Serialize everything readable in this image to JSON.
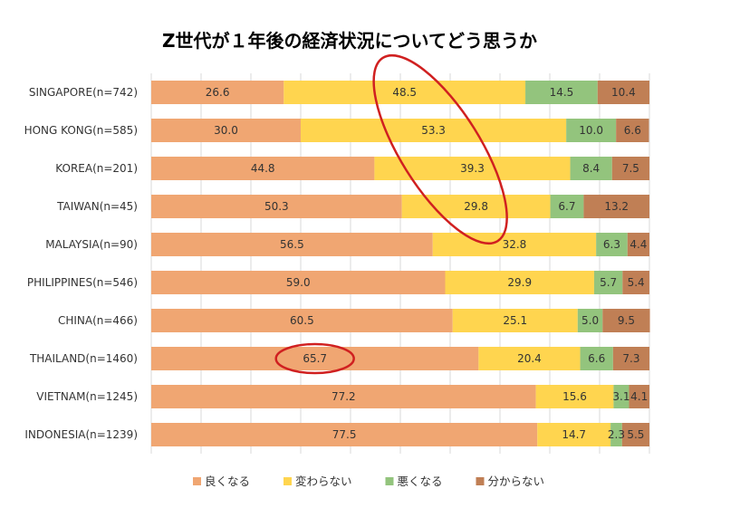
{
  "chart_data": {
    "type": "bar",
    "orientation": "horizontal",
    "stacked": true,
    "title": "Z世代が１年後の経済状況についてどう思うか",
    "xlabel": "",
    "ylabel": "",
    "xlim": [
      0,
      100
    ],
    "grid": true,
    "legend_position": "bottom",
    "categories": [
      "SINGAPORE(n=742)",
      "HONG KONG(n=585)",
      "KOREA(n=201)",
      "TAIWAN(n=45)",
      "MALAYSIA(n=90)",
      "PHILIPPINES(n=546)",
      "CHINA(n=466)",
      "THAILAND(n=1460)",
      "VIETNAM(n=1245)",
      "INDONESIA(n=1239)"
    ],
    "series": [
      {
        "name": "良くなる",
        "color": "#F0A672",
        "values": [
          26.6,
          30.0,
          44.8,
          50.3,
          56.5,
          59.0,
          60.5,
          65.7,
          77.2,
          77.5
        ],
        "labels": [
          "26.6",
          "30.0",
          "44.8",
          "50.3",
          "56.5",
          "59.0",
          "60.5",
          "65.7",
          "77.2",
          "77.5"
        ]
      },
      {
        "name": "変わらない",
        "color": "#FFD54F",
        "values": [
          48.5,
          53.3,
          39.3,
          29.8,
          32.8,
          29.9,
          25.1,
          20.4,
          15.6,
          14.7
        ],
        "labels": [
          "48.5",
          "53.3",
          "39.3",
          "29.8",
          "32.8",
          "29.9",
          "25.1",
          "20.4",
          "15.6",
          "14.7"
        ]
      },
      {
        "name": "悪くなる",
        "color": "#93C47D",
        "values": [
          14.5,
          10.0,
          8.4,
          6.7,
          6.3,
          5.7,
          5.0,
          6.6,
          3.1,
          2.3
        ],
        "labels": [
          "14.5",
          "10.0",
          "8.4",
          "6.7",
          "6.3",
          "5.7",
          "5.0",
          "6.6",
          "3.1",
          "2.3"
        ]
      },
      {
        "name": "分からない",
        "color": "#C07F55",
        "values": [
          10.4,
          6.6,
          7.5,
          13.2,
          4.4,
          5.4,
          9.5,
          7.3,
          4.1,
          5.5
        ],
        "labels": [
          "10.4",
          "6.6",
          "7.5",
          "13.2",
          "4.4",
          "5.4",
          "9.5",
          "7.3",
          "4.1",
          "5.5"
        ]
      }
    ],
    "annotations": [
      {
        "type": "ellipse",
        "color": "#D02020",
        "note": "highlights 変わらない values for SINGAPORE to TAIWAN"
      },
      {
        "type": "ellipse",
        "color": "#D02020",
        "note": "highlights THAILAND 良くなる value 65.7"
      }
    ]
  }
}
